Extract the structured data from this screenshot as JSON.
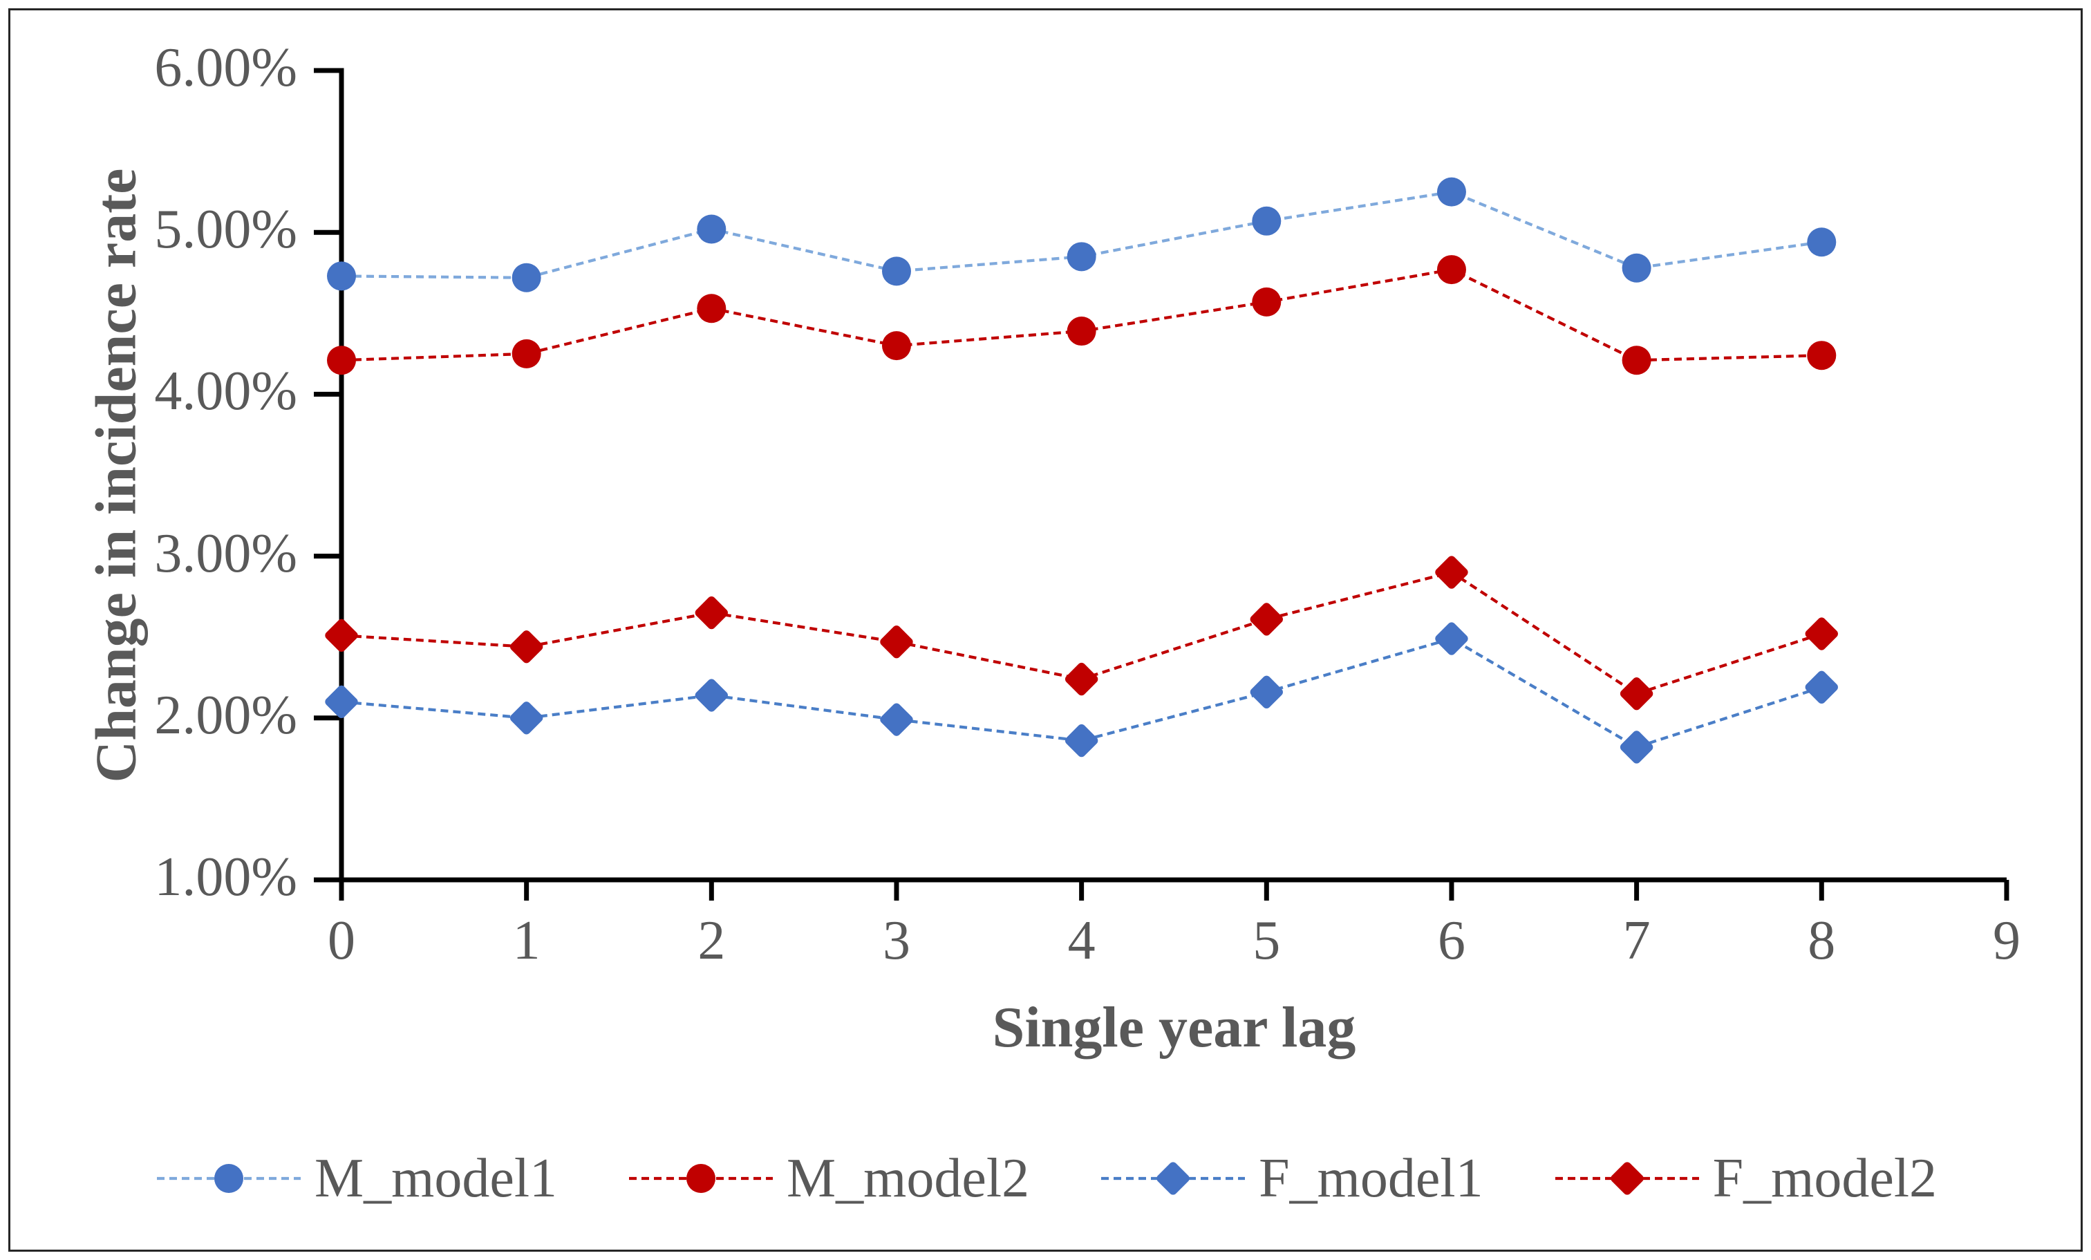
{
  "figure": {
    "background": "#ffffff",
    "border_color": "#262626"
  },
  "chart_data": {
    "type": "line",
    "title": "",
    "xlabel": "Single year lag",
    "ylabel": "Change in incidence rate",
    "x": [
      0,
      1,
      2,
      3,
      4,
      5,
      6,
      7,
      8
    ],
    "x_ticks": [
      "0",
      "1",
      "2",
      "3",
      "4",
      "5",
      "6",
      "7",
      "8",
      "9"
    ],
    "y_ticks": [
      "6.00%",
      "5.00%",
      "4.00%",
      "3.00%",
      "2.00%",
      "1.00%"
    ],
    "y_tick_values": [
      6,
      5,
      4,
      3,
      2,
      1
    ],
    "xlim": [
      0,
      9
    ],
    "ylim": [
      1,
      6
    ],
    "grid": false,
    "legend_position": "bottom",
    "axis_color": "#000000",
    "text_color": "#595959",
    "series": [
      {
        "name": "M_model1",
        "marker": "circle",
        "marker_color": "#4472C4",
        "line_color": "#7FA9DC",
        "line_style": "dashed",
        "values_pct": [
          4.73,
          4.72,
          5.02,
          4.76,
          4.85,
          5.07,
          5.25,
          4.78,
          4.94
        ]
      },
      {
        "name": "M_model2",
        "marker": "circle",
        "marker_color": "#C00000",
        "line_color": "#C00000",
        "line_style": "dashed",
        "values_pct": [
          4.21,
          4.25,
          4.53,
          4.3,
          4.39,
          4.57,
          4.77,
          4.21,
          4.24
        ]
      },
      {
        "name": "F_model1",
        "marker": "diamond",
        "marker_color": "#4472C4",
        "line_color": "#4A7EC7",
        "line_style": "dashed",
        "values_pct": [
          2.1,
          2.0,
          2.14,
          1.99,
          1.86,
          2.16,
          2.49,
          1.82,
          2.19
        ]
      },
      {
        "name": "F_model2",
        "marker": "diamond",
        "marker_color": "#C00000",
        "line_color": "#C00000",
        "line_style": "dashed",
        "values_pct": [
          2.51,
          2.44,
          2.65,
          2.47,
          2.24,
          2.61,
          2.9,
          2.15,
          2.52
        ]
      }
    ]
  }
}
